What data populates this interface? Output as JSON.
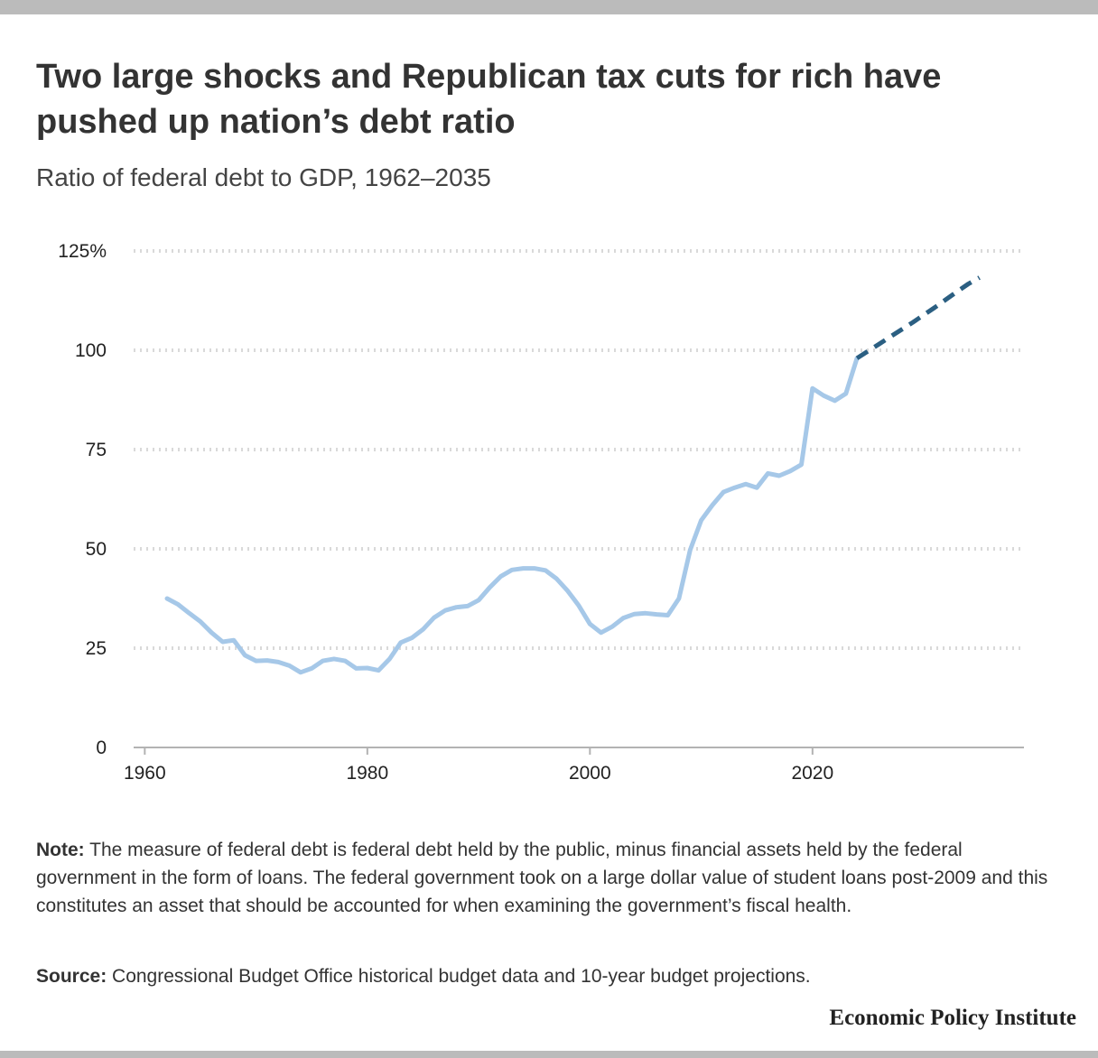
{
  "title": "Two large shocks and Republican tax cuts for rich have pushed up nation’s debt ratio",
  "subtitle": "Ratio of federal debt to GDP, 1962–2035",
  "note": {
    "label": "Note:",
    "text": "The measure of federal debt is federal debt held by the public, minus financial assets held by the federal government in the form of loans. The federal government took on a large dollar value of student loans post-2009 and this constitutes an asset that should be accounted for when examining the government’s fiscal health."
  },
  "source": {
    "label": "Source:",
    "text": "Congressional Budget Office historical budget data and 10-year budget projections."
  },
  "logo": "Economic Policy Institute",
  "colors": {
    "historical": "#a6c8e8",
    "projection": "#2b5f82",
    "grid": "#d9d9d9",
    "axis": "#b3b3b3"
  },
  "chart_data": {
    "type": "line",
    "title": "Two large shocks and Republican tax cuts for rich have pushed up nation’s debt ratio",
    "subtitle": "Ratio of federal debt to GDP, 1962–2035",
    "xlim": [
      1959,
      2039
    ],
    "ylim": [
      0,
      125
    ],
    "x_ticks": [
      1960,
      1980,
      2000,
      2020
    ],
    "y_ticks": [
      {
        "value": 0,
        "label": "0"
      },
      {
        "value": 25,
        "label": "25"
      },
      {
        "value": 50,
        "label": "50"
      },
      {
        "value": 75,
        "label": "75"
      },
      {
        "value": 100,
        "label": "100"
      },
      {
        "value": 125,
        "label": "125%"
      }
    ],
    "grid": "horizontal dotted",
    "series": [
      {
        "style": "solid",
        "x": [
          1962,
          1963,
          1964,
          1965,
          1966,
          1967,
          1968,
          1969,
          1970,
          1971,
          1972,
          1973,
          1974,
          1975,
          1976,
          1977,
          1978,
          1979,
          1980,
          1981,
          1982,
          1983,
          1984,
          1985,
          1986,
          1987,
          1988,
          1989,
          1990,
          1991,
          1992,
          1993,
          1994,
          1995,
          1996,
          1997,
          1998,
          1999,
          2000,
          2001,
          2002,
          2003,
          2004,
          2005,
          2006,
          2007,
          2008,
          2009,
          2010,
          2011,
          2012,
          2013,
          2014,
          2015,
          2016,
          2017,
          2018,
          2019,
          2020,
          2021,
          2022,
          2023,
          2024
        ],
        "values": [
          37.5,
          36.0,
          33.8,
          31.7,
          28.9,
          26.6,
          27.0,
          23.2,
          21.8,
          21.9,
          21.5,
          20.6,
          18.9,
          19.9,
          21.8,
          22.3,
          21.8,
          19.9,
          20.0,
          19.4,
          22.3,
          26.4,
          27.6,
          29.7,
          32.7,
          34.5,
          35.3,
          35.6,
          37.1,
          40.3,
          43.1,
          44.7,
          45.1,
          45.1,
          44.6,
          42.5,
          39.4,
          35.7,
          31.1,
          28.9,
          30.4,
          32.6,
          33.6,
          33.8,
          33.5,
          33.3,
          37.5,
          49.7,
          57.2,
          61.0,
          64.3,
          65.4,
          66.3,
          65.4,
          69.0,
          68.4,
          69.6,
          71.2,
          90.4,
          88.6,
          87.3,
          89.1,
          98.0
        ]
      },
      {
        "style": "dashed",
        "x": [
          2024,
          2025,
          2026,
          2027,
          2028,
          2029,
          2030,
          2031,
          2032,
          2033,
          2034,
          2035
        ],
        "values": [
          98.0,
          99.8,
          101.6,
          103.4,
          105.2,
          107.0,
          108.9,
          110.8,
          112.8,
          114.8,
          116.7,
          118.3
        ]
      }
    ]
  }
}
